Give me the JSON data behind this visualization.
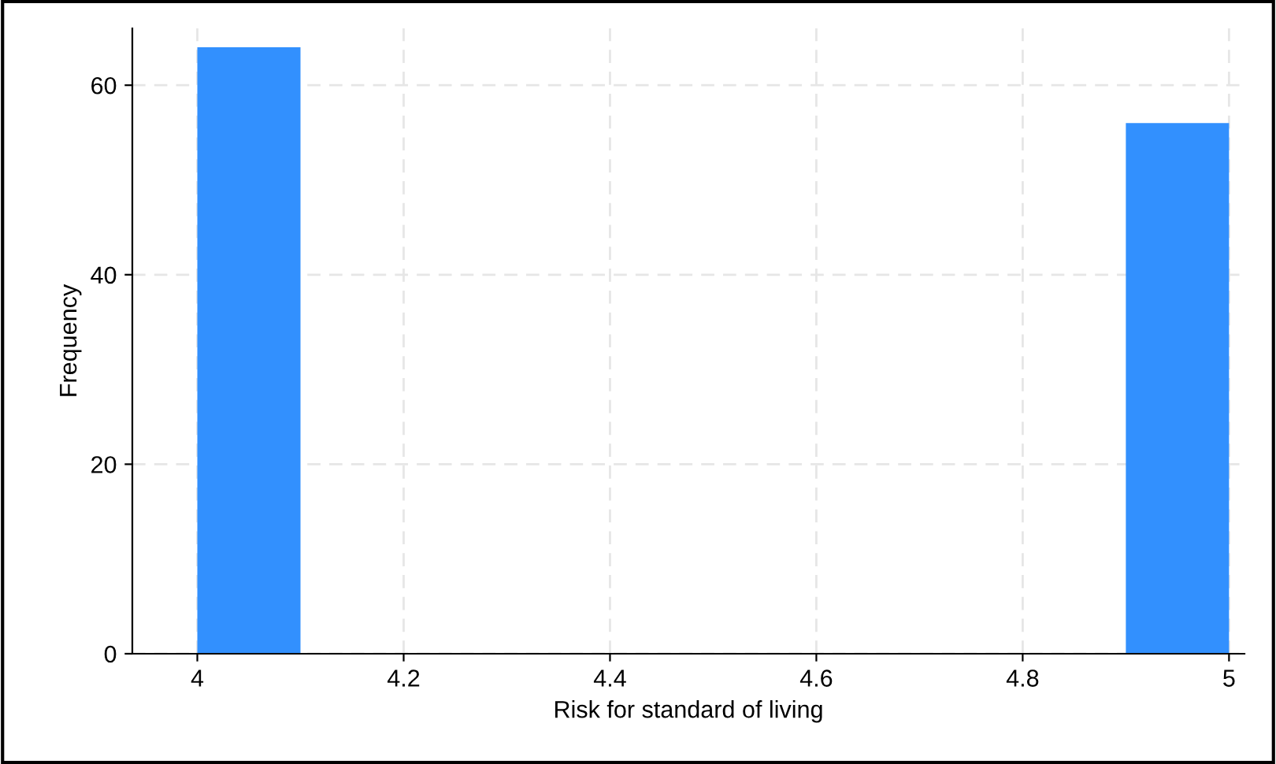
{
  "chart_data": {
    "type": "histogram",
    "xlabel": "Risk for standard of living",
    "ylabel": "Frequency",
    "bins": [
      4.0,
      4.1,
      4.2,
      4.3,
      4.4,
      4.5,
      4.6,
      4.7,
      4.8,
      4.9,
      5.0
    ],
    "values": [
      64,
      0,
      0,
      0,
      0,
      0,
      0,
      0,
      0,
      56
    ],
    "color": "#3290fe",
    "xlim": [
      3.937,
      5.015
    ],
    "ylim": [
      0,
      66
    ],
    "xticks": [
      4,
      4.2,
      4.4,
      4.6,
      4.8,
      5
    ],
    "yticks": [
      0,
      20,
      40,
      60
    ],
    "grid": true
  }
}
